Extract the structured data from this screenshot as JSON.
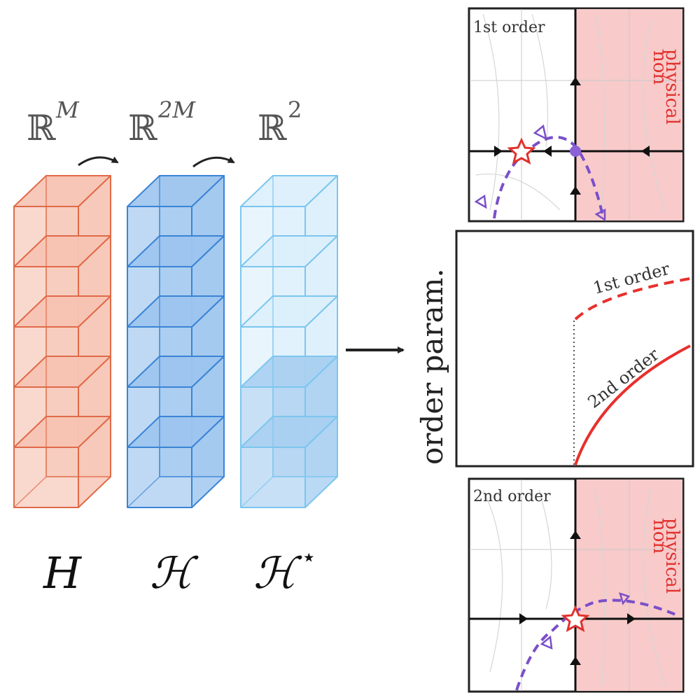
{
  "spaces": {
    "input": {
      "bb": "ℝ",
      "sup": "M"
    },
    "hidden": {
      "bb": "ℝ",
      "sup": "2M"
    },
    "output": {
      "bb": "ℝ",
      "sup": "2"
    }
  },
  "stacks": [
    {
      "label_main": "H",
      "label_sup": "",
      "face": "#f6c3b3",
      "edge": "#e06a48",
      "cubes": 5,
      "dark_cubes": 0
    },
    {
      "label_main": "ℋ",
      "label_sup": "",
      "face": "#9cc4ee",
      "edge": "#3a84d6",
      "cubes": 5,
      "dark_cubes": 0
    },
    {
      "label_main": "ℋ",
      "label_sup": "⋆",
      "face": "#dceffc",
      "edge": "#7cc6ee",
      "cubes": 5,
      "dark_cubes": 2,
      "dark_face": "#a9cff1"
    }
  ],
  "middle_plot": {
    "ylabel": "order param.",
    "first_label": "1st order",
    "second_label": "2nd order",
    "first_color": "#e8302c",
    "second_color": "#e8302c"
  },
  "phase_top": {
    "title": "1st order",
    "region_label_1": "non",
    "region_label_2": "physical",
    "region_color": "#f8caca",
    "region_text_color": "#e0322e",
    "curve_color": "#7a4fc9"
  },
  "phase_bottom": {
    "title": "2nd order",
    "region_label_1": "non",
    "region_label_2": "physical",
    "region_color": "#f8caca",
    "region_text_color": "#e0322e",
    "curve_color": "#7a4fc9"
  }
}
